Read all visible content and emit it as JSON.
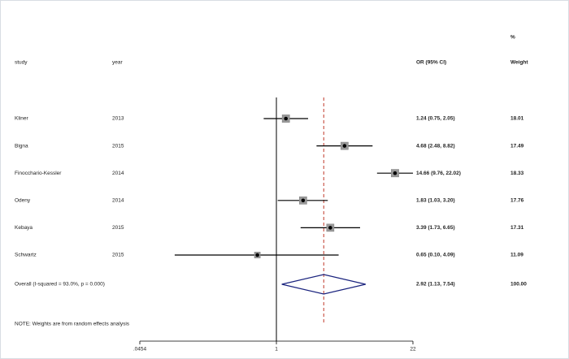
{
  "chart_data": {
    "type": "forest",
    "headers": {
      "study": "study",
      "year": "year",
      "ci": "OR (95% CI)",
      "pct": "%",
      "weight": "Weight"
    },
    "studies": [
      "Kliner",
      "Bigna",
      "Finocchario-Kessler",
      "Odeny",
      "Kebaya",
      "Schwartz"
    ],
    "years": [
      2013,
      2015,
      2014,
      2014,
      2015,
      2015
    ],
    "or": [
      1.24,
      4.68,
      14.66,
      1.83,
      3.39,
      0.65
    ],
    "lower": [
      0.75,
      2.48,
      9.76,
      1.03,
      1.73,
      0.1
    ],
    "upper": [
      2.05,
      8.82,
      22.02,
      3.2,
      6.65,
      4.09
    ],
    "ci_labels": [
      "1.24 (0.75, 2.05)",
      "4.68 (2.48, 8.82)",
      "14.66 (9.76, 22.02)",
      "1.83 (1.03, 3.20)",
      "3.39 (1.73, 6.65)",
      "0.65 (0.10, 4.09)"
    ],
    "weights": [
      18.01,
      17.49,
      18.33,
      17.76,
      17.31,
      11.09
    ],
    "overall": {
      "label": "Overall  (I-squared = 93.0%, p = 0.000)",
      "or": 2.92,
      "lower": 1.13,
      "upper": 7.54,
      "ci_label": "2.92 (1.13, 7.54)",
      "weight": 100,
      "weight_label": "100.00"
    },
    "note": "NOTE: Weights are from random effects analysis",
    "log_scale": true,
    "xlim": [
      0.0454,
      22
    ],
    "xticks": [
      {
        "value": 0.0454,
        "label": ".0454"
      },
      1,
      22
    ],
    "box_color": "#999999",
    "diamond_color": "#1a237e",
    "overall_line_color": "#c0392b"
  }
}
